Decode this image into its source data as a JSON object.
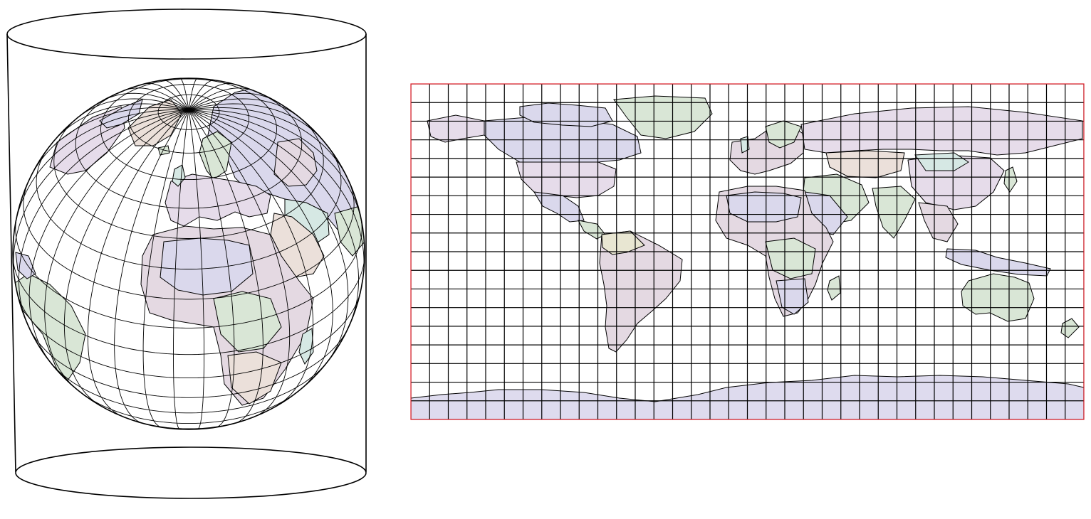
{
  "figure": {
    "left_panel": "globe-in-cylinder",
    "right_panel": "equirectangular-world-map"
  },
  "colors": {
    "background": "#ffffff",
    "outline": "#000000",
    "map_frame": "#e0202a",
    "ocean": "#ffffff",
    "country_fills": [
      "#e6dcea",
      "#d9e6d6",
      "#e4d9e2",
      "#dad8ec",
      "#ebe0da",
      "#d6e8e4",
      "#e8e6d2"
    ],
    "antarctica": "#dedbee"
  },
  "graticule": {
    "meridian_spacing_deg": 10,
    "parallel_spacing_deg": 10
  },
  "globe": {
    "center_lon_deg": 15,
    "center_lat_deg": 35
  }
}
